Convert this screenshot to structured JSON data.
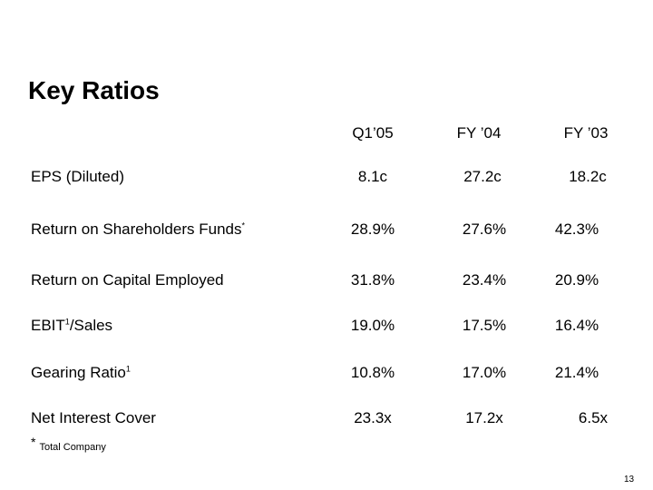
{
  "title": "Key Ratios",
  "columns": [
    "Q1’05",
    "FY ’04",
    "FY ’03"
  ],
  "rows": [
    {
      "label": "EPS (Diluted)",
      "sup": "",
      "suffix": "",
      "values": [
        "8.1c",
        "27.2c",
        "18.2c"
      ]
    },
    {
      "label": "Return on Shareholders Funds",
      "sup": "*",
      "suffix": "",
      "values": [
        "28.9%",
        "27.6%",
        "42.3%"
      ]
    },
    {
      "label": "Return on Capital Employed",
      "sup": "",
      "suffix": "",
      "values": [
        "31.8%",
        "23.4%",
        "20.9%"
      ]
    },
    {
      "label": "EBIT",
      "sup": "1",
      "suffix": "/Sales",
      "values": [
        "19.0%",
        "17.5%",
        "16.4%"
      ]
    },
    {
      "label": "Gearing Ratio",
      "sup": "1",
      "suffix": "",
      "values": [
        "10.8%",
        "17.0%",
        "21.4%"
      ]
    },
    {
      "label": "Net Interest Cover",
      "sup": "",
      "suffix": "",
      "values": [
        "23.3x",
        "17.2x",
        "6.5x"
      ]
    }
  ],
  "footnote": {
    "marker": "*",
    "text": "Total Company"
  },
  "page_number": "13"
}
